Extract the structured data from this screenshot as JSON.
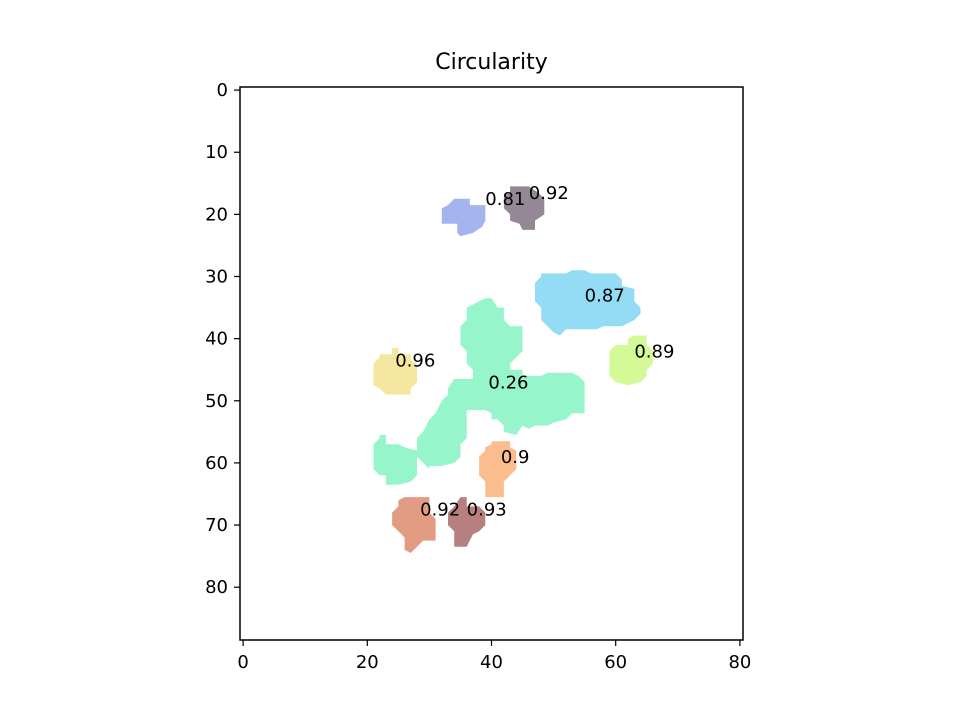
{
  "chart_data": {
    "type": "heatmap",
    "title": "Circularity",
    "xlabel": "",
    "ylabel": "",
    "xlim": [
      -0.5,
      80.5
    ],
    "ylim": [
      88.5,
      -0.5
    ],
    "y_inverted": true,
    "x_ticks": [
      0,
      20,
      40,
      60,
      80
    ],
    "y_ticks": [
      0,
      10,
      20,
      30,
      40,
      50,
      60,
      70,
      80
    ],
    "grid": false,
    "legend": "none",
    "regions": [
      {
        "label": "0.81",
        "circularity": 0.81,
        "color": "#a3b4ef",
        "label_at": [
          39,
          18.5
        ],
        "outline": [
          [
            35,
            17.5
          ],
          [
            36.5,
            17.5
          ],
          [
            36.5,
            18.5
          ],
          [
            39,
            18.5
          ],
          [
            39,
            21
          ],
          [
            38.5,
            22
          ],
          [
            37,
            23
          ],
          [
            35,
            23.5
          ],
          [
            34.5,
            23
          ],
          [
            34.5,
            21.5
          ],
          [
            32,
            21.5
          ],
          [
            32,
            19
          ],
          [
            33,
            18.5
          ],
          [
            34,
            17.5
          ]
        ]
      },
      {
        "label": "0.92",
        "circularity": 0.92,
        "color": "#958896",
        "label_at": [
          46,
          17.5
        ],
        "outline": [
          [
            43,
            15.5
          ],
          [
            46,
            15.5
          ],
          [
            47.5,
            16.5
          ],
          [
            48.5,
            17.5
          ],
          [
            48.5,
            20
          ],
          [
            47,
            21
          ],
          [
            47,
            22.5
          ],
          [
            45,
            22.5
          ],
          [
            44.5,
            21.5
          ],
          [
            43,
            21
          ],
          [
            43,
            20
          ],
          [
            42,
            19
          ],
          [
            42,
            17
          ],
          [
            43,
            16.5
          ]
        ]
      },
      {
        "label": "0.87",
        "circularity": 0.87,
        "color": "#94dcf3",
        "label_at": [
          55,
          34
        ]
      },
      {
        "label": "0.89",
        "circularity": 0.89,
        "color": "#d3fa96",
        "label_at": [
          63,
          43
        ]
      },
      {
        "label": "0.96",
        "circularity": 0.96,
        "color": "#f5e7a0",
        "label_at": [
          24.5,
          44.5
        ]
      },
      {
        "label": "0.26",
        "circularity": 0.26,
        "color": "#96f5ca",
        "label_at": [
          39.5,
          48
        ]
      },
      {
        "label": "0.9",
        "circularity": 0.9,
        "color": "#fbbd8e",
        "label_at": [
          41.5,
          60
        ]
      },
      {
        "label": "0.92",
        "circularity": 0.92,
        "color": "#e39c84",
        "label_at": [
          28.5,
          68.5
        ]
      },
      {
        "label": "0.93",
        "circularity": 0.93,
        "color": "#b68080",
        "label_at": [
          36,
          68.5
        ]
      }
    ]
  }
}
